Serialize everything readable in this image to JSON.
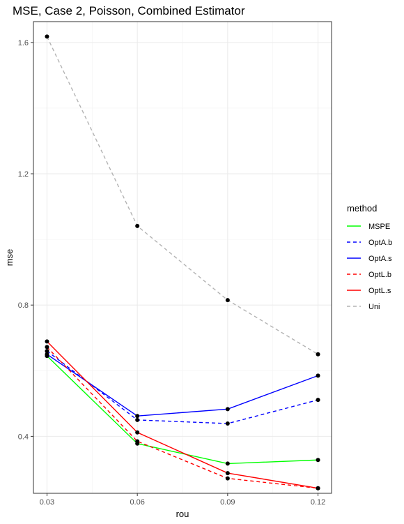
{
  "chart_data": {
    "type": "line",
    "title": "MSE, Case 2, Poisson, Combined Estimator",
    "xlabel": "rou",
    "ylabel": "mse",
    "x": [
      0.03,
      0.06,
      0.09,
      0.12
    ],
    "x_tick_labels": [
      "0.03",
      "0.06",
      "0.09",
      "0.12"
    ],
    "xlim": [
      0.0255,
      0.1245
    ],
    "y_ticks": [
      0.4,
      0.8,
      1.2,
      1.6
    ],
    "y_tick_labels": [
      "0.4",
      "0.8",
      "1.2",
      "1.6"
    ],
    "ylim": [
      0.2265,
      1.6635
    ],
    "grid": true,
    "legend": {
      "title": "method",
      "position": "right"
    },
    "series": [
      {
        "name": "MSPE",
        "color": "#00ff00",
        "dash": "solid",
        "values": [
          0.645,
          0.378,
          0.317,
          0.328
        ]
      },
      {
        "name": "OptA.b",
        "color": "#0000ff",
        "dash": "dashed",
        "values": [
          0.66,
          0.45,
          0.439,
          0.511
        ]
      },
      {
        "name": "OptA.s",
        "color": "#0000ff",
        "dash": "solid",
        "values": [
          0.65,
          0.462,
          0.483,
          0.585
        ]
      },
      {
        "name": "OptL.b",
        "color": "#ff0000",
        "dash": "dashed",
        "values": [
          0.672,
          0.385,
          0.272,
          0.242
        ]
      },
      {
        "name": "OptL.s",
        "color": "#ff0000",
        "dash": "solid",
        "values": [
          0.689,
          0.412,
          0.288,
          0.242
        ]
      },
      {
        "name": "Uni",
        "color": "#b3b3b3",
        "dash": "dashed",
        "values": [
          1.618,
          1.041,
          0.815,
          0.65
        ]
      }
    ]
  }
}
